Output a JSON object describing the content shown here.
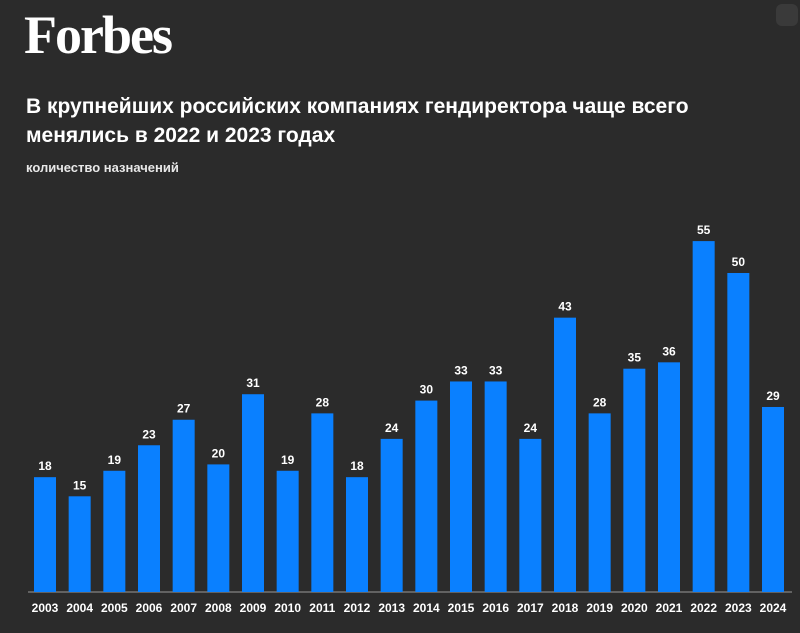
{
  "logo": "Forbes",
  "chart_data": {
    "type": "bar",
    "title": "В крупнейших российских компаниях гендиректора чаще всего менялись в 2022 и 2023 годах",
    "subtitle": "количество назначений",
    "categories": [
      "2003",
      "2004",
      "2005",
      "2006",
      "2007",
      "2008",
      "2009",
      "2010",
      "2011",
      "2012",
      "2013",
      "2014",
      "2015",
      "2016",
      "2017",
      "2018",
      "2019",
      "2020",
      "2021",
      "2022",
      "2023",
      "2024"
    ],
    "values": [
      18,
      15,
      19,
      23,
      27,
      20,
      31,
      19,
      28,
      18,
      24,
      30,
      33,
      33,
      24,
      43,
      28,
      35,
      36,
      55,
      50,
      29
    ],
    "color": "#0a80ff"
  }
}
